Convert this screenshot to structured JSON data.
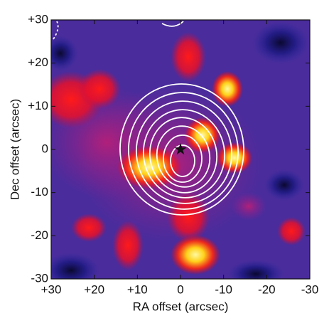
{
  "chart_data": {
    "type": "image",
    "xlabel": "RA offset (arcsec)",
    "ylabel": "Dec offset (arcsec)",
    "xlim": [
      30,
      -30
    ],
    "ylim": [
      -30,
      30
    ],
    "xticks": [
      {
        "value": 30,
        "label": "+30"
      },
      {
        "value": 20,
        "label": "+20"
      },
      {
        "value": 10,
        "label": "+10"
      },
      0,
      -10,
      -20,
      -30
    ],
    "yticks": [
      {
        "value": 30,
        "label": "+30"
      },
      {
        "value": 20,
        "label": "+20"
      },
      {
        "value": 10,
        "label": "+10"
      },
      0,
      -10,
      -20,
      -30
    ],
    "marker": {
      "x": 0,
      "y": 0,
      "color": "#111111"
    }
  }
}
